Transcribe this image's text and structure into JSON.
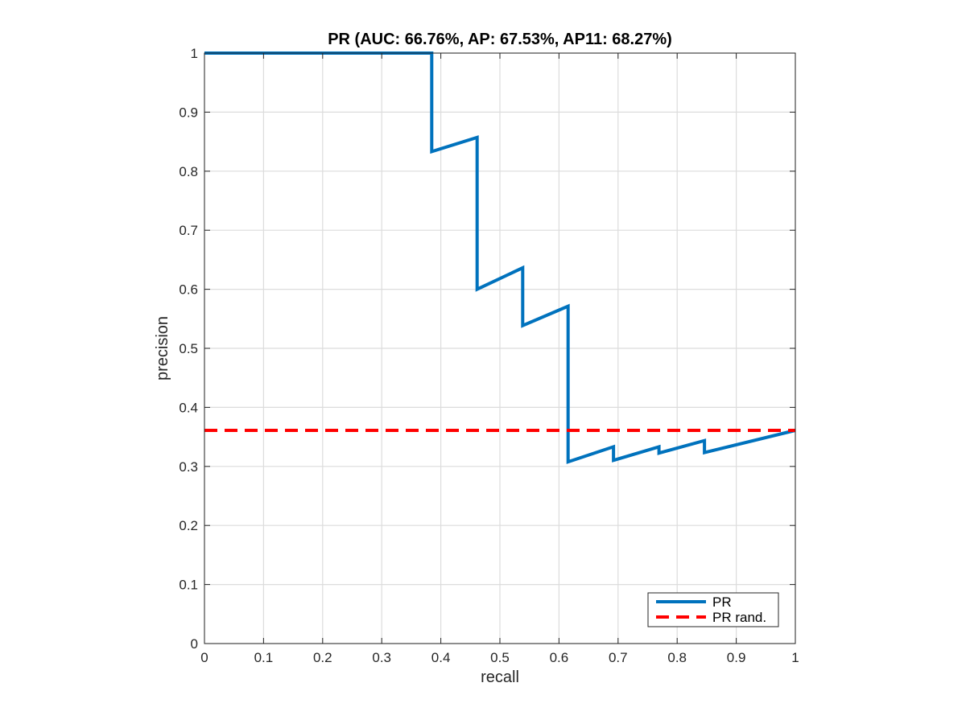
{
  "chart_data": {
    "type": "line",
    "title": "PR (AUC: 66.76%, AP: 67.53%, AP11: 68.27%)",
    "xlabel": "recall",
    "ylabel": "precision",
    "xlim": [
      0,
      1
    ],
    "ylim": [
      0,
      1
    ],
    "xticks": [
      0,
      0.1,
      0.2,
      0.3,
      0.4,
      0.5,
      0.6,
      0.7,
      0.8,
      0.9,
      1
    ],
    "xtick_labels": [
      "0",
      "0.1",
      "0.2",
      "0.3",
      "0.4",
      "0.5",
      "0.6",
      "0.7",
      "0.8",
      "0.9",
      "1"
    ],
    "yticks": [
      0,
      0.1,
      0.2,
      0.3,
      0.4,
      0.5,
      0.6,
      0.7,
      0.8,
      0.9,
      1
    ],
    "ytick_labels": [
      "0",
      "0.1",
      "0.2",
      "0.3",
      "0.4",
      "0.5",
      "0.6",
      "0.7",
      "0.8",
      "0.9",
      "1"
    ],
    "grid": true,
    "legend_position": "bottom-right",
    "series": [
      {
        "name": "PR",
        "color": "#0072BD",
        "style": "solid",
        "x": [
          0,
          0.3846,
          0.3846,
          0.4615,
          0.4615,
          0.5385,
          0.5385,
          0.6154,
          0.6154,
          0.6923,
          0.6923,
          0.7692,
          0.7692,
          0.8462,
          0.8462,
          1.0
        ],
        "y": [
          1.0,
          1.0,
          0.8333,
          0.8571,
          0.6,
          0.6364,
          0.5385,
          0.5714,
          0.3077,
          0.3333,
          0.3103,
          0.3333,
          0.3226,
          0.3438,
          0.3235,
          0.3611
        ]
      },
      {
        "name": "PR rand.",
        "color": "#FF0000",
        "style": "dashed",
        "x": [
          0,
          1
        ],
        "y": [
          0.3611,
          0.3611
        ]
      }
    ]
  }
}
